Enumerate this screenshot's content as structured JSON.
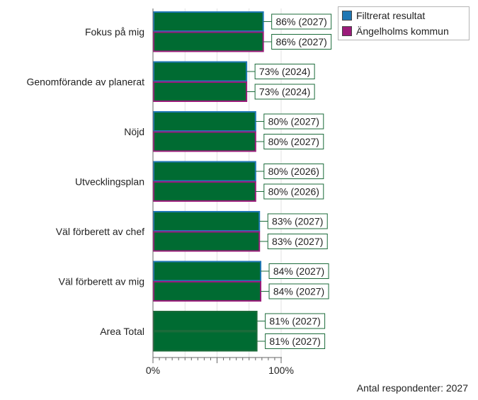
{
  "chart_data": {
    "type": "bar",
    "orientation": "horizontal",
    "categories": [
      "Fokus på mig",
      "Genomförande av planerat",
      "Nöjd",
      "Utvecklingsplan",
      "Väl förberett av chef",
      "Väl förberett av mig",
      "Area Total"
    ],
    "series": [
      {
        "name": "Filtrerat resultat",
        "color": "#1f77b4",
        "values": [
          86,
          73,
          80,
          80,
          83,
          84,
          81
        ],
        "labels": [
          "86% (2027)",
          "73% (2024)",
          "80% (2027)",
          "80% (2026)",
          "83% (2027)",
          "84% (2027)",
          "81% (2027)"
        ]
      },
      {
        "name": "Ängelholms kommun",
        "color": "#9b1b7a",
        "values": [
          86,
          73,
          80,
          80,
          83,
          84,
          81
        ],
        "labels": [
          "86% (2027)",
          "73% (2024)",
          "80% (2027)",
          "80% (2026)",
          "83% (2027)",
          "84% (2027)",
          "81% (2027)"
        ]
      }
    ],
    "bar_fill": "#006b32",
    "total_border": "#1b6b3a",
    "xlim": [
      0,
      100
    ],
    "x_ticks": [
      "0%",
      "100%"
    ],
    "grid": true,
    "legend_position": "top-right"
  },
  "legend": {
    "items": [
      {
        "label": "Filtrerat resultat",
        "color": "#1f77b4"
      },
      {
        "label": "Ängelholms kommun",
        "color": "#9b1b7a"
      }
    ]
  },
  "footer": {
    "respondents": "Antal respondenter: 2027"
  }
}
